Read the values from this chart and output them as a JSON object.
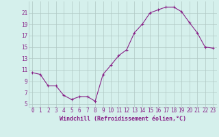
{
  "x": [
    0,
    1,
    2,
    3,
    4,
    5,
    6,
    7,
    8,
    9,
    10,
    11,
    12,
    13,
    14,
    15,
    16,
    17,
    18,
    19,
    20,
    21,
    22,
    23
  ],
  "y": [
    10.5,
    10.2,
    8.2,
    8.2,
    6.5,
    5.8,
    6.3,
    6.3,
    5.5,
    10.2,
    11.8,
    13.5,
    14.5,
    17.5,
    19.0,
    21.0,
    21.5,
    22.0,
    22.0,
    21.2,
    19.3,
    17.5,
    15.0,
    14.8
  ],
  "line_color": "#882288",
  "marker": "+",
  "markersize": 3,
  "linewidth": 0.8,
  "bg_color": "#d5f0ec",
  "grid_color": "#b0c8c4",
  "xlabel": "Windchill (Refroidissement éolien,°C)",
  "xlabel_fontsize": 6.0,
  "tick_fontsize": 5.5,
  "yticks": [
    5,
    7,
    9,
    11,
    13,
    15,
    17,
    19,
    21
  ],
  "ylim": [
    4.5,
    23.0
  ],
  "xlim": [
    -0.5,
    23.5
  ]
}
